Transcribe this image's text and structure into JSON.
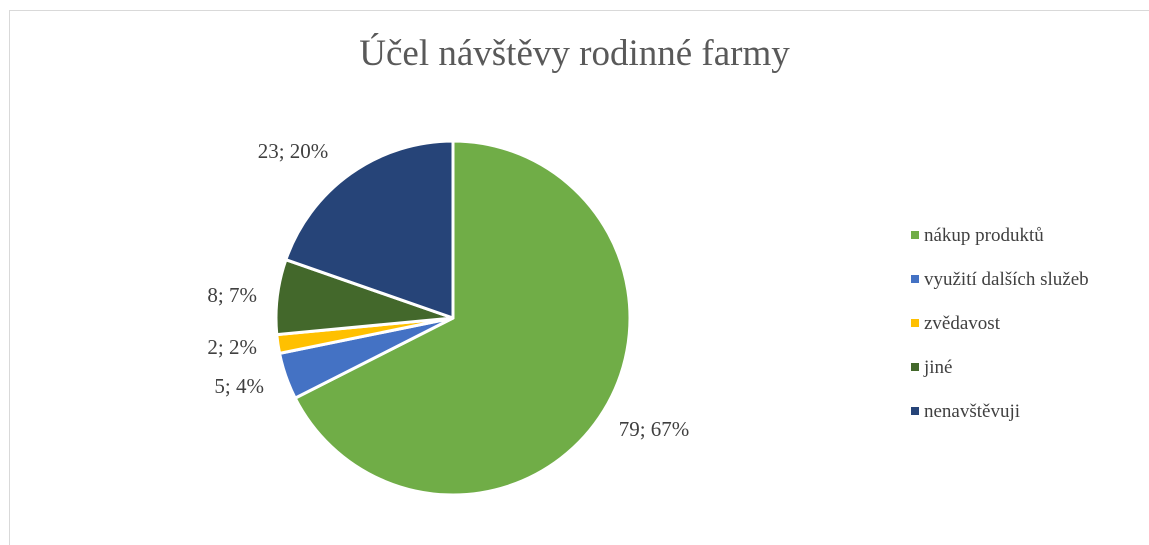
{
  "chart_data": {
    "type": "pie",
    "title": "Účel návštěvy rodinné farmy",
    "slices": [
      {
        "label": "nákup produktů",
        "value": 79,
        "percent": "67%",
        "color": "#70ad47"
      },
      {
        "label": "využití dalších služeb",
        "value": 5,
        "percent": "4%",
        "color": "#4472c4"
      },
      {
        "label": "zvědavost",
        "value": 2,
        "percent": "2%",
        "color": "#ffc000"
      },
      {
        "label": "jiné",
        "value": 8,
        "percent": "7%",
        "color": "#43682b"
      },
      {
        "label": "nenavštěvuji",
        "value": 23,
        "percent": "20%",
        "color": "#264478"
      }
    ],
    "data_labels": [
      "79; 67%",
      "5; 4%",
      "2; 2%",
      "8; 7%",
      "23; 20%"
    ],
    "legend_position": "right",
    "start_angle": "12 o'clock, clockwise"
  }
}
